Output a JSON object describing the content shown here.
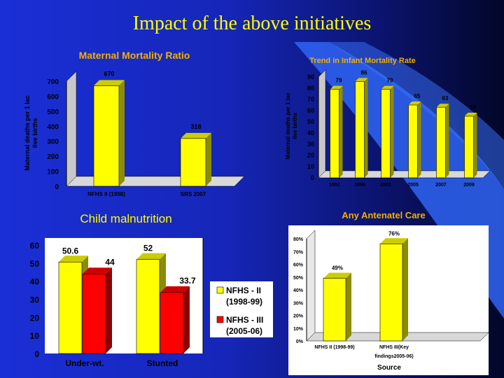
{
  "slide": {
    "title": "Impact of the above initiatives"
  },
  "colors": {
    "yellow": "#ffff00",
    "red": "#ff0000",
    "white": "#ffffff",
    "black": "#000000"
  },
  "chart_data": [
    {
      "type": "bar",
      "title": "Maternal Mortality Ratio",
      "ylabel": "Maternal deaths per 1 lac live births",
      "categories": [
        "NFHS II (1998)",
        "SRS 2007"
      ],
      "values": [
        670,
        318
      ],
      "data_labels": [
        "670",
        "318"
      ],
      "yticks": [
        "0",
        "100",
        "200",
        "300",
        "400",
        "500",
        "600",
        "700"
      ],
      "ylim": [
        0,
        700
      ],
      "grid": false
    },
    {
      "type": "bar",
      "title": "Trend in Infant Mortality Rate",
      "ylabel": "Maternal deaths per 1 lac live births",
      "categories": [
        "1991",
        "1996",
        "2001",
        "2005",
        "2007",
        "2009"
      ],
      "values": [
        79,
        86,
        79,
        65,
        63,
        55
      ],
      "data_labels": [
        "79",
        "86",
        "79",
        "65",
        "63",
        "55"
      ],
      "yticks": [
        "0",
        "10",
        "20",
        "30",
        "40",
        "50",
        "60",
        "70",
        "80",
        "90"
      ],
      "ylim": [
        0,
        90
      ],
      "grid": false
    },
    {
      "type": "bar",
      "title": "Child malnutrition",
      "categories": [
        "Under-wt.",
        "Stunted"
      ],
      "series": [
        {
          "name": "NFHS - II (1998-99)",
          "values": [
            50.6,
            52
          ],
          "data_labels": [
            "50.6",
            "52"
          ]
        },
        {
          "name": "NFHS - III (2005-06)",
          "values": [
            44,
            33.7
          ],
          "data_labels": [
            "44",
            "33.7"
          ]
        }
      ],
      "yticks": [
        "0",
        "10",
        "20",
        "30",
        "40",
        "50",
        "60"
      ],
      "ylim": [
        0,
        60
      ],
      "legend": "right",
      "grid": false
    },
    {
      "type": "bar",
      "title": "Any Antenatel Care",
      "xlabel": "Source",
      "categories": [
        "NFHS II (1998-99)",
        "NFHS III(Key findings2005-06)"
      ],
      "values": [
        49,
        76
      ],
      "data_labels": [
        "49%",
        "76%"
      ],
      "yticks": [
        "0%",
        "10%",
        "20%",
        "30%",
        "40%",
        "50%",
        "60%",
        "70%",
        "80%"
      ],
      "ylim": [
        0,
        80
      ],
      "grid": false
    }
  ]
}
